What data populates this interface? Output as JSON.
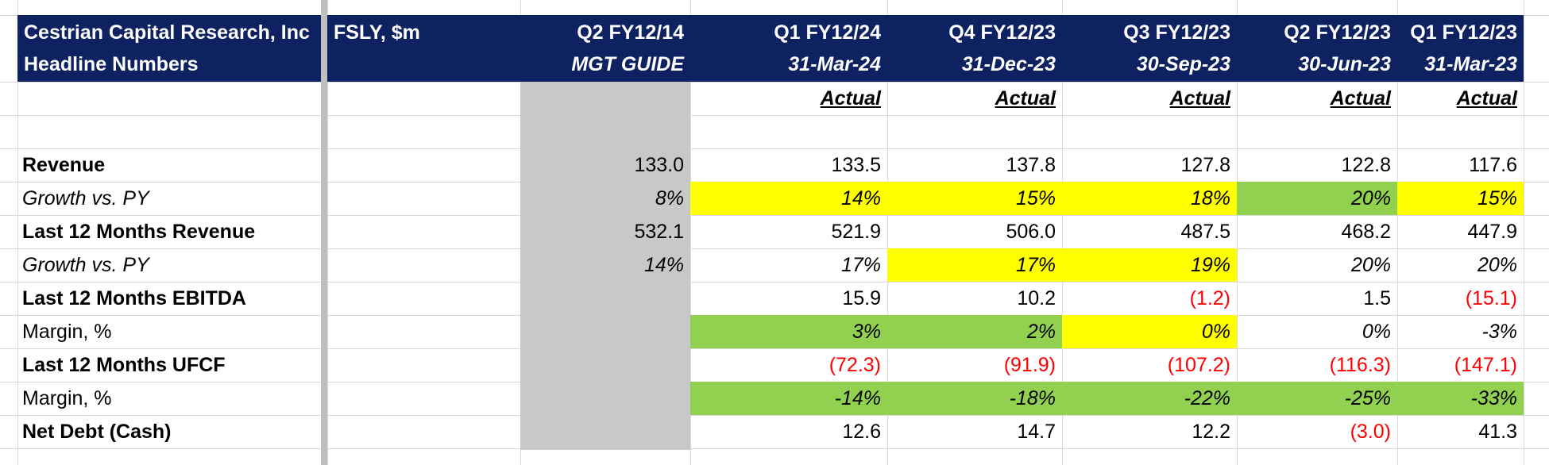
{
  "header": {
    "company_line1": "Cestrian Capital Research, Inc",
    "company_line2": "Headline Numbers",
    "ticker": "FSLY, $m",
    "guide_period": "Q2 FY12/14",
    "guide_label": "MGT GUIDE",
    "periods": [
      {
        "quarter": "Q1 FY12/24",
        "date": "31-Mar-24",
        "status": "Actual"
      },
      {
        "quarter": "Q4 FY12/23",
        "date": "31-Dec-23",
        "status": "Actual"
      },
      {
        "quarter": "Q3 FY12/23",
        "date": "30-Sep-23",
        "status": "Actual"
      },
      {
        "quarter": "Q2 FY12/23",
        "date": "30-Jun-23",
        "status": "Actual"
      },
      {
        "quarter": "Q1 FY12/23",
        "date": "31-Mar-23",
        "status": "Actual"
      }
    ]
  },
  "colors": {
    "header_bg": "#0e2161",
    "guide_bg": "#c8c8c8",
    "highlight_yellow": "#ffff00",
    "highlight_green": "#92d050",
    "negative": "#ff0000"
  },
  "rows": [
    {
      "label": "Revenue",
      "guide": "133.0",
      "values": [
        "133.5",
        "137.8",
        "127.8",
        "122.8",
        "117.6"
      ]
    },
    {
      "label": "Growth vs. PY",
      "guide": "8%",
      "values": [
        "14%",
        "15%",
        "18%",
        "20%",
        "15%"
      ]
    },
    {
      "label": "Last 12 Months Revenue",
      "guide": "532.1",
      "values": [
        "521.9",
        "506.0",
        "487.5",
        "468.2",
        "447.9"
      ]
    },
    {
      "label": "Growth vs. PY",
      "guide": "14%",
      "values": [
        "17%",
        "17%",
        "19%",
        "20%",
        "20%"
      ]
    },
    {
      "label": "Last 12 Months EBITDA",
      "guide": "",
      "values": [
        "15.9",
        "10.2",
        "(1.2)",
        "1.5",
        "(15.1)"
      ]
    },
    {
      "label": "Margin, %",
      "guide": "",
      "values": [
        "3%",
        "2%",
        "0%",
        "0%",
        "-3%"
      ]
    },
    {
      "label": "Last 12 Months UFCF",
      "guide": "",
      "values": [
        "(72.3)",
        "(91.9)",
        "(107.2)",
        "(116.3)",
        "(147.1)"
      ]
    },
    {
      "label": "Margin, %",
      "guide": "",
      "values": [
        "-14%",
        "-18%",
        "-22%",
        "-25%",
        "-33%"
      ]
    },
    {
      "label": "Net Debt (Cash)",
      "guide": "",
      "values": [
        "12.6",
        "14.7",
        "12.2",
        "(3.0)",
        "41.3"
      ]
    }
  ]
}
